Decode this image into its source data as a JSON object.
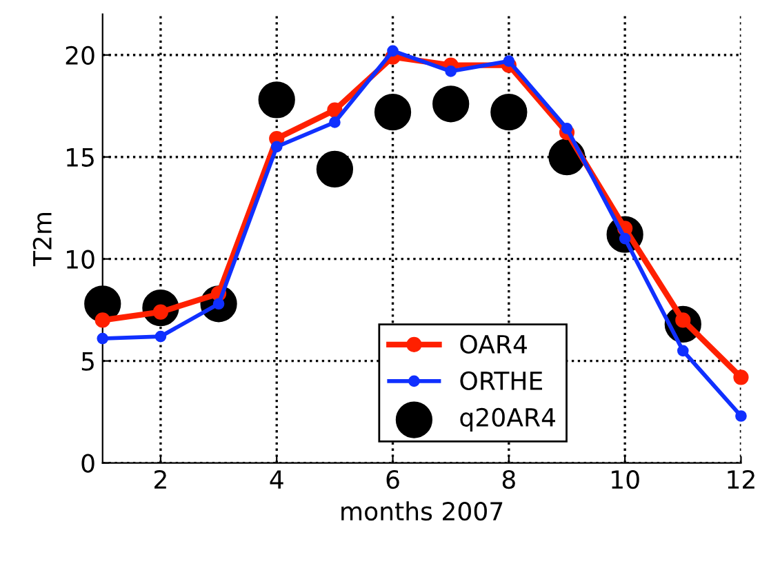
{
  "chart_data": {
    "type": "line",
    "xlabel": "months 2007",
    "ylabel": "T2m",
    "x": [
      1,
      2,
      3,
      4,
      5,
      6,
      7,
      8,
      9,
      10,
      11,
      12
    ],
    "series": [
      {
        "name": "OAR4",
        "color": "#ff2000",
        "marker": "circle",
        "values": [
          7.0,
          7.4,
          8.3,
          15.9,
          17.3,
          19.9,
          19.5,
          19.5,
          16.2,
          11.5,
          7.0,
          4.2
        ]
      },
      {
        "name": "ORTHE",
        "color": "#1030ff",
        "marker": "circle",
        "values": [
          6.1,
          6.2,
          7.8,
          15.5,
          16.7,
          20.2,
          19.2,
          19.7,
          16.4,
          11.0,
          5.5,
          2.3
        ]
      },
      {
        "name": "q20AR4",
        "type": "scatter",
        "color": "#000000",
        "marker": "circle",
        "values": [
          7.8,
          7.6,
          7.8,
          17.8,
          14.4,
          17.2,
          17.6,
          17.2,
          15.0,
          11.2,
          6.8,
          null
        ]
      }
    ],
    "xlim": [
      1,
      12
    ],
    "ylim": [
      0,
      22
    ],
    "xticks": [
      2,
      4,
      6,
      8,
      10,
      12
    ],
    "yticks": [
      0,
      5,
      10,
      15,
      20
    ],
    "grid": true,
    "legend": "bottom"
  }
}
